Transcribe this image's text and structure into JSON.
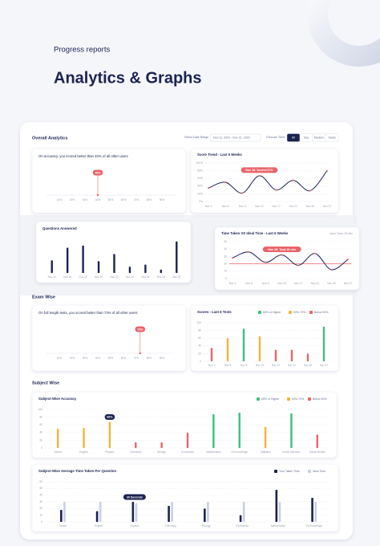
{
  "page": {
    "eyebrow": "Progress reports",
    "title": "Analytics & Graphs",
    "overall": "Overall Analytics",
    "date_label": "Select Date Range",
    "date_range": "Nov 11, 2020 - Nov 21, 2020",
    "time_label": "Choose Time",
    "time_options": [
      "All",
      "Day",
      "Medium",
      "Yearly"
    ],
    "exam": "Exam Wise",
    "subject": "Subject Wise"
  },
  "chart_data": [
    {
      "type": "percentile",
      "title": "On accuracy, you scored better than 40% of all other users",
      "value": 40,
      "value_label": "40%",
      "color": "#e8656b",
      "xlim": [
        0,
        100
      ],
      "xticks": [
        {
          "value": 10,
          "label": "10%"
        },
        {
          "value": 20,
          "label": "20%"
        },
        {
          "value": 30,
          "label": "30%"
        },
        {
          "value": 40,
          "label": "40%"
        },
        {
          "value": 50,
          "label": "50%"
        },
        {
          "value": 60,
          "label": "60%"
        },
        {
          "value": 70,
          "label": "70%"
        },
        {
          "value": 80,
          "label": "80%"
        },
        {
          "value": 90,
          "label": "90%"
        }
      ]
    },
    {
      "type": "line",
      "title": "Score Trend - Last 6 Weeks",
      "categories": [
        "Nov 1",
        "Nov 5",
        "Nov 9",
        "Nov 13",
        "Nov 17",
        "Nov 21",
        "Nov 25",
        "Nov 27"
      ],
      "values": [
        35,
        50,
        22,
        67,
        30,
        55,
        28,
        80
      ],
      "color": "#1b2352",
      "marker_color": "#e8656b",
      "ylim": [
        0,
        100
      ],
      "yticks": [
        {
          "value": 0,
          "label": "0%"
        },
        {
          "value": 20,
          "label": "20%"
        },
        {
          "value": 40,
          "label": "40%"
        },
        {
          "value": 60,
          "label": "60%"
        },
        {
          "value": 80,
          "label": "80%"
        },
        {
          "value": 100,
          "label": "100%"
        }
      ],
      "annotation": "Nov 28: Scored 67%",
      "grid": true
    },
    {
      "type": "bar",
      "title": "Questions Answered",
      "categories": [
        "Nov 14",
        "Nov 16",
        "Nov 18",
        "Nov 20",
        "Nov 22",
        "Nov 24",
        "Nov 26",
        "Nov 28",
        "Nov 30"
      ],
      "values": [
        30,
        60,
        65,
        28,
        45,
        15,
        20,
        8,
        75
      ],
      "color": "#1b2352",
      "ylim": [
        0,
        80
      ]
    },
    {
      "type": "line",
      "title": "Time Taken VS Ideal Time - Last 6 Weeks",
      "subtitle": "Ideal Time: 20 Min",
      "categories": [
        "Nov 1",
        "Nov 5",
        "Nov 9",
        "Nov 13",
        "Nov 17",
        "Nov 21",
        "Nov 25",
        "Nov 27"
      ],
      "values": [
        28,
        36,
        22,
        32,
        18,
        34,
        12,
        26
      ],
      "color": "#1b2352",
      "marker_color": "#e8656b",
      "threshold": 20,
      "threshold_color": "#e8656b",
      "ylim": [
        0,
        50
      ],
      "yticks": [
        0,
        10,
        20,
        30,
        40,
        50
      ],
      "annotation": "Nov 28: Took 32 min",
      "grid": true
    },
    {
      "type": "percentile",
      "title": "On full length tests, you scored better than 73% of all other users",
      "value": 73,
      "value_label": "73%",
      "color": "#e8656b",
      "xlim": [
        0,
        100
      ],
      "xticks": [
        {
          "value": 10,
          "label": "10%"
        },
        {
          "value": 20,
          "label": "20%"
        },
        {
          "value": 30,
          "label": "30%"
        },
        {
          "value": 40,
          "label": "40%"
        },
        {
          "value": 50,
          "label": "50%"
        },
        {
          "value": 60,
          "label": "60%"
        },
        {
          "value": 70,
          "label": "70%"
        },
        {
          "value": 80,
          "label": "80%"
        },
        {
          "value": 90,
          "label": "90%"
        }
      ]
    },
    {
      "type": "bar",
      "title": "Scores - Last 6 Tests",
      "legend": [
        {
          "name": "80% or Higher",
          "color": "#3cc07e"
        },
        {
          "name": "50%-79%",
          "color": "#f2b53a"
        },
        {
          "name": "Below 50%",
          "color": "#e8656b"
        }
      ],
      "categories": [
        "Nov 1",
        "Nov 5",
        "Nov 9",
        "Nov 13",
        "Nov 17",
        "Nov 21",
        "Nov 25",
        "Nov 27"
      ],
      "values": [
        35,
        60,
        85,
        65,
        30,
        30,
        20,
        90
      ],
      "colors": [
        "#e8656b",
        "#f2b53a",
        "#3cc07e",
        "#f2b53a",
        "#e8656b",
        "#e8656b",
        "#e8656b",
        "#3cc07e"
      ],
      "ylim": [
        0,
        100
      ],
      "yticks": [
        0,
        20,
        40,
        60,
        80,
        100
      ],
      "grid": true
    },
    {
      "type": "bar",
      "title": "Subject-Wise Accuracy",
      "legend": [
        {
          "name": "80% or Higher",
          "color": "#3cc07e"
        },
        {
          "name": "50%-79%",
          "color": "#f2b53a"
        },
        {
          "name": "Below 50%",
          "color": "#e8656b"
        }
      ],
      "categories": [
        "Verbal",
        "English",
        "Physics",
        "Chemistry",
        "Biology",
        "Economics",
        "Mathematics",
        "Gk Knowledge",
        "Statistics",
        "Social Sciences",
        "Social Studies"
      ],
      "values": [
        50,
        52,
        68,
        15,
        15,
        40,
        88,
        92,
        55,
        90,
        35
      ],
      "colors": [
        "#f2b53a",
        "#f2b53a",
        "#f2b53a",
        "#e8656b",
        "#e8656b",
        "#e8656b",
        "#3cc07e",
        "#3cc07e",
        "#f2b53a",
        "#3cc07e",
        "#e8656b"
      ],
      "ylim": [
        0,
        100
      ],
      "yticks": [
        0,
        20,
        40,
        60,
        80,
        100
      ],
      "annotation": "68%",
      "grid": true
    },
    {
      "type": "bar",
      "title": "Subject-Wise Average Time Taken Per Question",
      "categories": [
        "Verbal",
        "English",
        "Physics",
        "Chemistry",
        "Biology",
        "Economics",
        "Mathematics",
        "Gk Knowledge"
      ],
      "series": [
        {
          "name": "Your Taken Time",
          "color": "#1b2352",
          "values": [
            18,
            16,
            30,
            24,
            20,
            10,
            48,
            36
          ]
        },
        {
          "name": "Ideal Time",
          "color": "#c9cfe6",
          "values": [
            30,
            30,
            28,
            30,
            30,
            30,
            30,
            30
          ]
        }
      ],
      "ylim": [
        0,
        60
      ],
      "yticks": [
        0,
        10,
        20,
        30,
        40,
        50,
        60
      ],
      "annotation": "30 Seconds",
      "grid": true
    }
  ]
}
